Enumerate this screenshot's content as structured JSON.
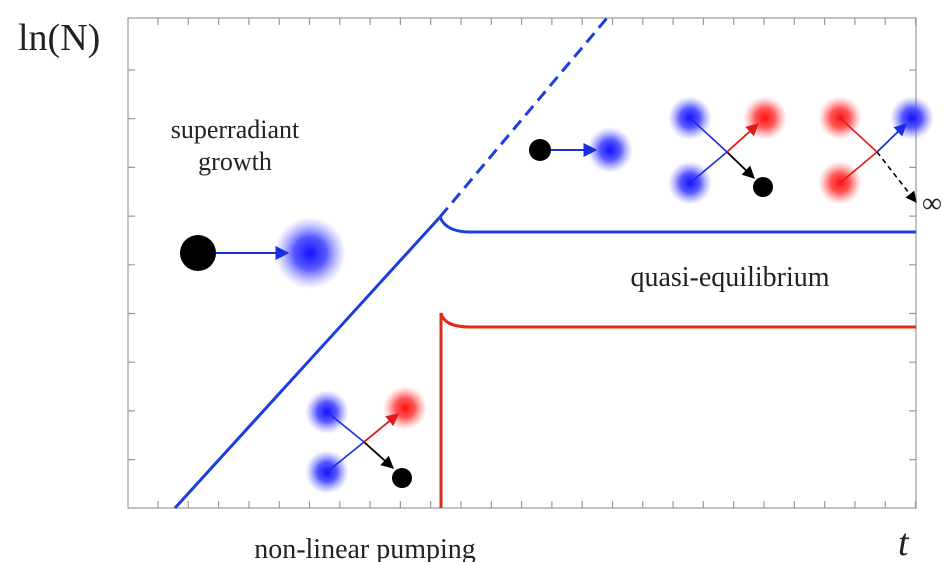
{
  "axes": {
    "y_label": "ln(N)",
    "x_label": "t"
  },
  "annotations": {
    "superradiant_growth": [
      "superradiant",
      "growth"
    ],
    "quasi_equilibrium": "quasi-equilibrium",
    "non_linear_pumping": "non-linear pumping",
    "infinity": "∞"
  }
}
